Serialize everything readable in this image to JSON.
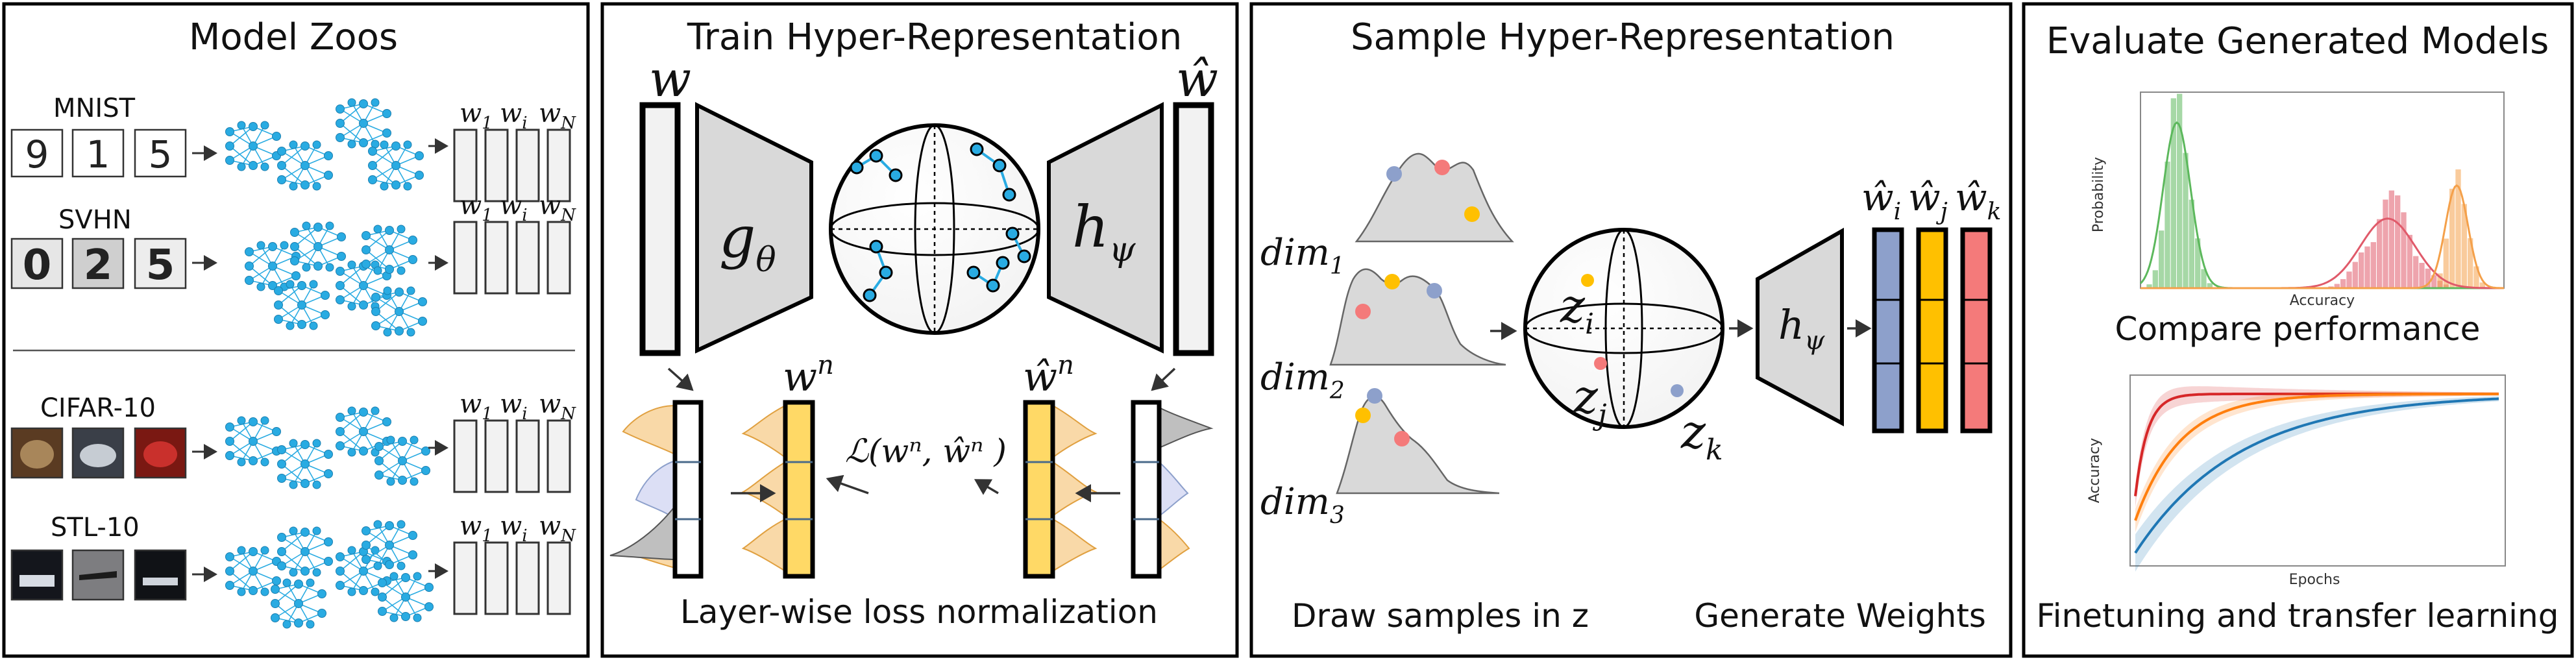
{
  "panels": {
    "zoos": {
      "title": "Model Zoos",
      "datasets": [
        "MNIST",
        "SVHN",
        "CIFAR-10",
        "STL-10"
      ],
      "weights": [
        "w",
        "1",
        "w",
        "i",
        "w",
        "N"
      ],
      "mnist_digits": [
        "9",
        "1",
        "5"
      ],
      "svhn_digits": [
        "0",
        "2",
        "5"
      ]
    },
    "train": {
      "title": "Train Hyper-Representation",
      "w_label": "w",
      "what_label": "ŵ",
      "encoder_letter": "g",
      "encoder_sub": "θ",
      "decoder_letter": "h",
      "decoder_sub": "ψ",
      "wn_base": "w",
      "wn_sup": "n",
      "whatn_base": "ŵ",
      "whatn_sup": "n",
      "loss": "ℒ(wⁿ, ŵⁿ )",
      "caption": "Layer-wise loss normalization"
    },
    "sample": {
      "title": "Sample Hyper-Representation",
      "dims": [
        {
          "base": "dim",
          "sub": "1"
        },
        {
          "base": "dim",
          "sub": "2"
        },
        {
          "base": "dim",
          "sub": "3"
        }
      ],
      "z": [
        {
          "base": "z",
          "sub": "i"
        },
        {
          "base": "z",
          "sub": "j"
        },
        {
          "base": "z",
          "sub": "k"
        }
      ],
      "decoder_letter": "h",
      "decoder_sub": "ψ",
      "outputs": [
        {
          "base": "ŵ",
          "sub": "i"
        },
        {
          "base": "ŵ",
          "sub": "j"
        },
        {
          "base": "ŵ",
          "sub": "k"
        }
      ],
      "caption_left": "Draw samples in z",
      "caption_right": "Generate Weights"
    },
    "evaluate": {
      "title": "Evaluate Generated Models",
      "hist_ylabel": "Probability",
      "hist_xlabel": "Accuracy",
      "hist_caption": "Compare performance",
      "curve_ylabel": "Accuracy",
      "curve_xlabel": "Epochs",
      "curve_caption": "Finetuning and transfer learning"
    }
  },
  "colors": {
    "blue": "#8da0cb",
    "orange": "#ffc000",
    "red": "#f47a7a",
    "cyan": "#29abe2",
    "yellow_fill": "#ffd966",
    "gray_fill": "#d9d9d9",
    "hist_green": "#5cb85c",
    "hist_red": "#e05a6a",
    "hist_orange": "#f4a04a",
    "curve_red": "#d62728",
    "curve_orange": "#ff7f0e",
    "curve_blue": "#1f77b4"
  },
  "chart_data": [
    {
      "type": "area",
      "title": "",
      "xlabel": "Accuracy",
      "ylabel": "Probability",
      "series": [
        {
          "name": "",
          "color": "#5cb85c",
          "peak": 0.1,
          "spread": 0.03
        },
        {
          "name": "",
          "color": "#e05a6a",
          "peak": 0.68,
          "spread": 0.06
        },
        {
          "name": "",
          "color": "#f4a04a",
          "peak": 0.87,
          "spread": 0.025
        }
      ]
    },
    {
      "type": "line",
      "title": "",
      "xlabel": "Epochs",
      "ylabel": "Accuracy",
      "series": [
        {
          "name": "",
          "color": "#d62728",
          "rate": 30
        },
        {
          "name": "",
          "color": "#ff7f0e",
          "rate": 8
        },
        {
          "name": "",
          "color": "#1f77b4",
          "rate": 3.5
        }
      ]
    }
  ]
}
